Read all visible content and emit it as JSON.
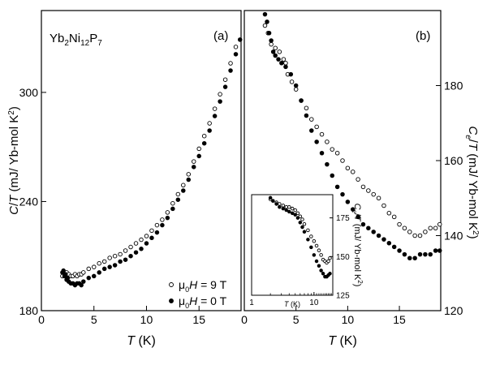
{
  "chart_data": [
    {
      "type": "scatter",
      "panel_label": "(a)",
      "compound": {
        "base": "Yb",
        "s1": "2",
        "mid": "Ni",
        "s2": "12",
        "end": "P",
        "s3": "7"
      },
      "xlabel": {
        "sym": "T",
        "unit": " (K)"
      },
      "ylabel": "C/T (mJ/ Yb-mol K²)",
      "xlim": [
        0,
        19
      ],
      "ylim": [
        180,
        345
      ],
      "xticks": [
        0,
        5,
        10,
        15
      ],
      "yticks": [
        180,
        240,
        300
      ],
      "legend": {
        "position": "bottom-right",
        "entries": [
          {
            "series": "9T",
            "label": "μ0H = 9 T",
            "marker": "open-circle"
          },
          {
            "series": "0T",
            "label": "μ0H = 0 T",
            "marker": "filled-circle"
          }
        ]
      },
      "series": [
        {
          "name": "9T",
          "marker": "open-circle",
          "x": [
            2.0,
            2.2,
            2.4,
            2.6,
            2.8,
            3.0,
            3.2,
            3.4,
            3.6,
            3.8,
            4.0,
            4.5,
            5.0,
            5.5,
            6.0,
            6.5,
            7.0,
            7.5,
            8.0,
            8.5,
            9.0,
            9.5,
            10.0,
            10.5,
            11.0,
            11.5,
            12.0,
            12.5,
            13.0,
            13.5,
            14.0,
            14.5,
            15.0,
            15.5,
            16.0,
            16.5,
            17.0,
            17.5,
            18.0,
            18.5
          ],
          "y": [
            199,
            200,
            201,
            200,
            199,
            199,
            200,
            199,
            200,
            200,
            201,
            203,
            204,
            206,
            207,
            209,
            210,
            211,
            213,
            215,
            217,
            219,
            221,
            224,
            227,
            230,
            234,
            239,
            244,
            249,
            255,
            262,
            269,
            276,
            283,
            291,
            299,
            307,
            316,
            325
          ]
        },
        {
          "name": "0T",
          "marker": "filled-circle",
          "x": [
            2.0,
            2.1,
            2.2,
            2.3,
            2.4,
            2.5,
            2.6,
            2.8,
            3.0,
            3.2,
            3.4,
            3.6,
            3.8,
            4.0,
            4.5,
            5.0,
            5.5,
            6.0,
            6.5,
            7.0,
            7.5,
            8.0,
            8.5,
            9.0,
            9.5,
            10.0,
            10.5,
            11.0,
            11.5,
            12.0,
            12.5,
            13.0,
            13.5,
            14.0,
            14.5,
            15.0,
            15.5,
            16.0,
            16.5,
            17.0,
            17.5,
            18.0,
            18.5,
            18.9
          ],
          "y": [
            201,
            202,
            199,
            200,
            197,
            198,
            196,
            195,
            195,
            194,
            195,
            195,
            194,
            196,
            198,
            199,
            201,
            203,
            204,
            205,
            207,
            208,
            210,
            212,
            214,
            217,
            220,
            223,
            227,
            231,
            236,
            241,
            246,
            252,
            259,
            265,
            272,
            279,
            287,
            295,
            303,
            312,
            321,
            329
          ]
        }
      ]
    },
    {
      "type": "scatter",
      "panel_label": "(b)",
      "xlabel": {
        "sym": "T",
        "unit": " (K)"
      },
      "ylabel": "Ce/T (mJ/ Yb-mol K²)",
      "xlim": [
        0,
        19
      ],
      "ylim": [
        120,
        200
      ],
      "xticks": [
        0,
        5,
        10,
        15
      ],
      "yticks": [
        120,
        140,
        160,
        180
      ],
      "y_axis_side": "right",
      "series": [
        {
          "name": "9T",
          "marker": "open-circle",
          "x": [
            2.0,
            2.3,
            2.6,
            3.0,
            3.4,
            3.8,
            4.0,
            4.2,
            4.6,
            5.0,
            5.5,
            6.0,
            6.5,
            7.0,
            7.5,
            8.0,
            8.5,
            9.0,
            9.5,
            10.0,
            10.5,
            11.0,
            11.5,
            12.0,
            12.5,
            13.0,
            13.5,
            14.0,
            14.5,
            15.0,
            15.5,
            16.0,
            16.5,
            17.0,
            17.5,
            18.0,
            18.5,
            18.9
          ],
          "y": [
            196,
            194,
            191,
            190,
            189,
            187,
            186,
            183,
            181,
            179,
            176,
            174,
            171,
            169,
            167,
            165,
            163,
            162,
            160,
            158,
            157,
            155,
            153,
            152,
            151,
            150,
            148,
            146,
            145,
            143,
            142,
            141,
            140,
            140,
            141,
            142,
            142,
            143
          ]
        },
        {
          "name": "0T",
          "marker": "filled-circle",
          "x": [
            2.0,
            2.2,
            2.4,
            2.6,
            2.8,
            3.0,
            3.3,
            3.6,
            4.0,
            4.5,
            5.0,
            5.5,
            6.0,
            6.5,
            7.0,
            7.5,
            8.0,
            8.5,
            9.0,
            9.5,
            10.0,
            10.5,
            11.0,
            11.5,
            12.0,
            12.5,
            13.0,
            13.5,
            14.0,
            14.5,
            15.0,
            15.5,
            16.0,
            16.5,
            17.0,
            17.5,
            18.0,
            18.5,
            18.9
          ],
          "y": [
            199,
            197,
            194,
            192,
            189,
            188,
            187,
            186,
            185,
            183,
            180,
            176,
            172,
            168,
            165,
            162,
            159,
            156,
            153,
            151,
            149,
            147,
            145,
            143,
            142,
            141,
            140,
            139,
            138,
            137,
            136,
            135,
            134,
            134,
            135,
            135,
            135,
            136,
            136
          ]
        }
      ]
    },
    {
      "type": "scatter",
      "panel_label": "inset",
      "xscale": "log",
      "xlabel": {
        "sym": "T",
        "unit": " (K)"
      },
      "ylabel": "Ce/T (mJ/ Yb-mol K²)",
      "xlim": [
        1,
        20
      ],
      "ylim": [
        125,
        190
      ],
      "xticks": [
        1,
        10
      ],
      "yticks": [
        125,
        150,
        175
      ],
      "series": [
        {
          "name": "9T",
          "marker": "open-circle",
          "x": [
            2.0,
            2.2,
            2.5,
            2.8,
            3.2,
            3.6,
            4.0,
            4.5,
            5.0,
            5.5,
            6.0,
            6.5,
            7.0,
            8.0,
            9.0,
            10.0,
            11.0,
            12.0,
            13.0,
            14.0,
            15.0,
            16.0,
            17.0,
            18.0
          ],
          "y": [
            187,
            186,
            185,
            184,
            183,
            182,
            182,
            181,
            180,
            178,
            176,
            174,
            171,
            167,
            163,
            160,
            157,
            154,
            151,
            148,
            147,
            146,
            147,
            149
          ]
        },
        {
          "name": "0T",
          "marker": "filled-circle",
          "x": [
            2.0,
            2.2,
            2.5,
            2.8,
            3.2,
            3.6,
            4.0,
            4.5,
            5.0,
            5.5,
            6.0,
            6.5,
            7.0,
            8.0,
            9.0,
            10.0,
            11.0,
            12.0,
            13.0,
            14.0,
            15.0,
            16.0,
            17.0,
            18.0
          ],
          "y": [
            188,
            186,
            184,
            182,
            181,
            180,
            179,
            178,
            177,
            175,
            172,
            169,
            166,
            161,
            156,
            151,
            147,
            144,
            141,
            139,
            137,
            137,
            138,
            139
          ]
        }
      ]
    }
  ]
}
